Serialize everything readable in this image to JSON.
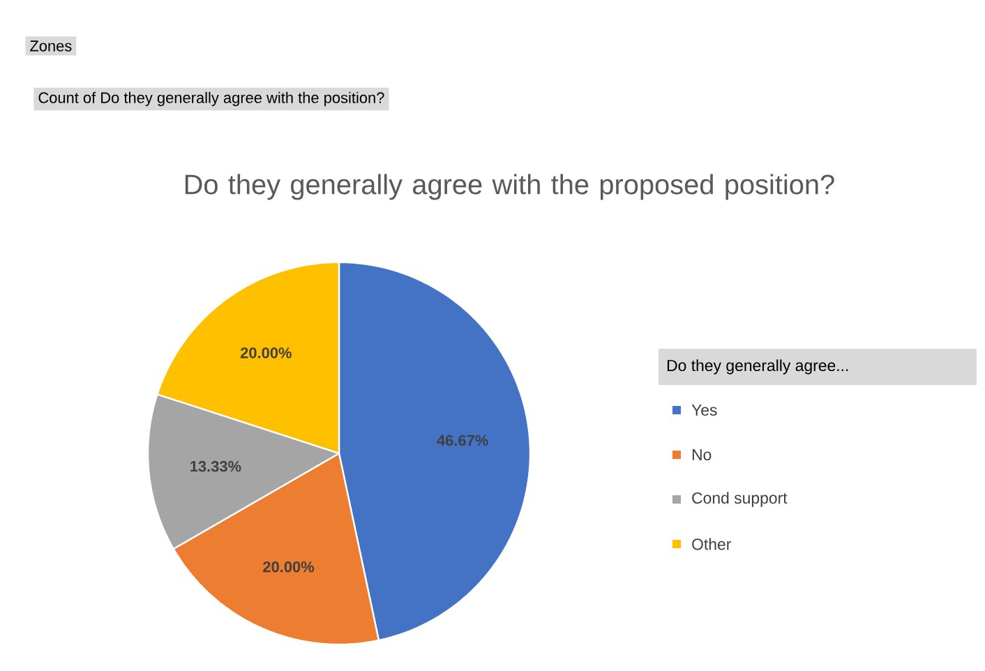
{
  "chart_data": {
    "type": "pie",
    "title": "Do they generally agree with the proposed position?",
    "annotations": [
      "Zones",
      "Count of Do they generally agree with the position?"
    ],
    "legend_title": "Do they generally agree...",
    "legend": "right",
    "categories": [
      "Yes",
      "No",
      "Cond support",
      "Other"
    ],
    "values": [
      46.67,
      20.0,
      13.33,
      20.0
    ],
    "value_labels": [
      "46.67%",
      "20.00%",
      "13.33%",
      "20.00%"
    ],
    "colors": [
      "#4472c4",
      "#ed7d31",
      "#a5a5a5",
      "#ffc000"
    ]
  }
}
